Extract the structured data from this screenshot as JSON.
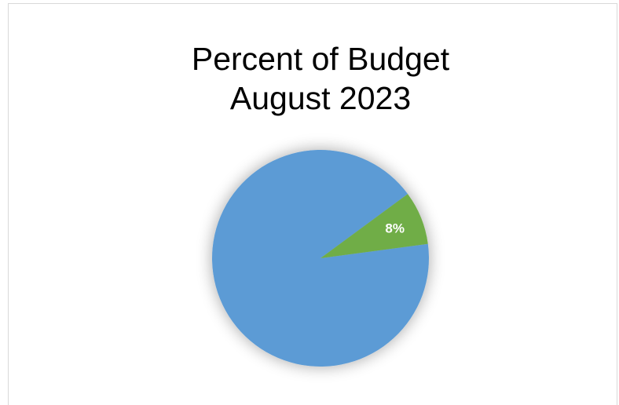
{
  "chart_data": {
    "type": "pie",
    "title": "Percent of Budget",
    "subtitle": "August 2023",
    "slices": [
      {
        "value": 92,
        "label": "",
        "color": "#5b9bd5"
      },
      {
        "value": 8,
        "label": "8%",
        "color": "#70ad47"
      }
    ],
    "legend": "none"
  }
}
